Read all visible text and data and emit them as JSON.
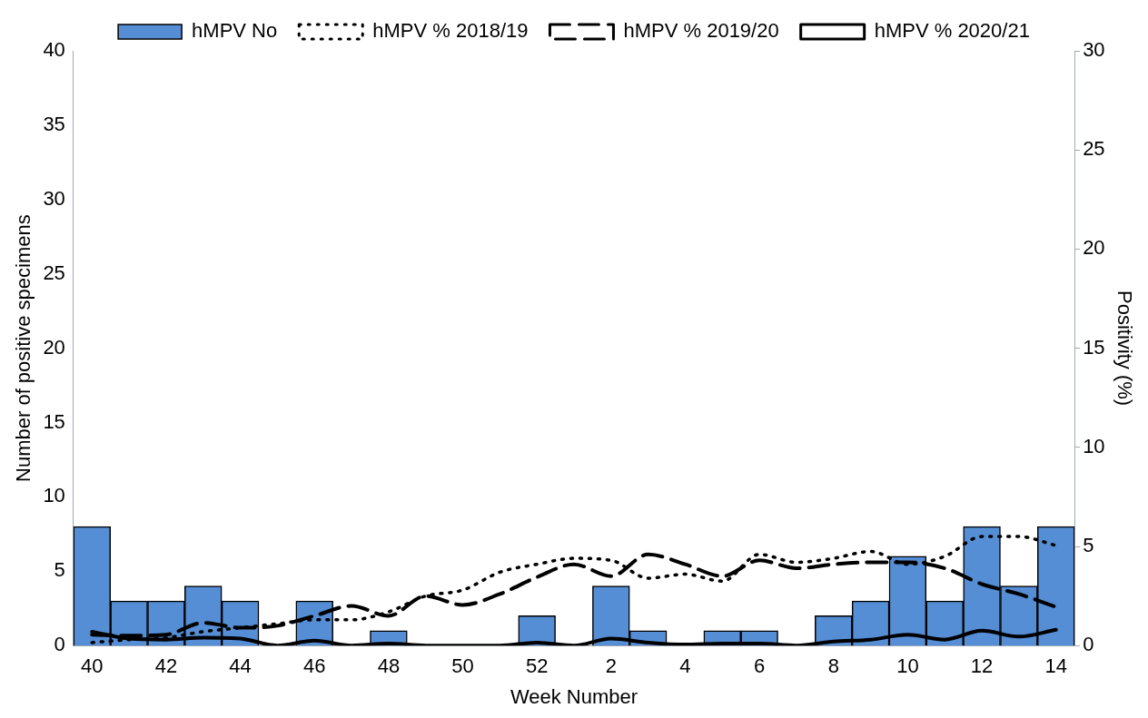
{
  "chart_data": {
    "type": "bar",
    "xlabel": "Week Number",
    "ylabel": "Number of positive specimens",
    "y2label": "Positivity (%)",
    "categories": [
      "40",
      null,
      "42",
      null,
      "44",
      null,
      "46",
      null,
      "48",
      null,
      "50",
      null,
      "52",
      null,
      "2",
      null,
      "4",
      null,
      "6",
      null,
      "8",
      null,
      "10",
      null,
      "12",
      null,
      "14"
    ],
    "series": [
      {
        "name": "hMPV No",
        "color": "#558ed5",
        "values": [
          8,
          3,
          3,
          4,
          3,
          0,
          3,
          0,
          1,
          0,
          0,
          0,
          2,
          0,
          4,
          1,
          0,
          1,
          1,
          0,
          2,
          3,
          6,
          3,
          8,
          4,
          8
        ]
      },
      {
        "name": "hMPV % 2018/19",
        "type": "line",
        "axis": "y2",
        "color": "#000000",
        "line_style": "dotted",
        "values": [
          0.15,
          0.3,
          0.4,
          0.7,
          0.9,
          1.1,
          1.3,
          1.3,
          1.7,
          2.5,
          2.8,
          3.7,
          4.1,
          4.4,
          4.3,
          3.4,
          3.6,
          3.25,
          4.6,
          4.2,
          4.4,
          4.75,
          4.1,
          4.5,
          5.5,
          5.5,
          5.05
        ]
      },
      {
        "name": "hMPV % 2019/20",
        "type": "line",
        "axis": "y2",
        "color": "#000000",
        "line_style": "dashed",
        "values": [
          0.55,
          0.5,
          0.55,
          1.15,
          0.9,
          1.0,
          1.5,
          2.0,
          1.5,
          2.5,
          2.05,
          2.6,
          3.45,
          4.1,
          3.5,
          4.6,
          4.1,
          3.5,
          4.3,
          3.9,
          4.1,
          4.2,
          4.2,
          3.9,
          3.1,
          2.6,
          1.95
        ]
      },
      {
        "name": "hMPV % 2020/21",
        "type": "line",
        "axis": "y2",
        "color": "#000000",
        "line_style": "solid",
        "values": [
          0.7,
          0.35,
          0.3,
          0.4,
          0.35,
          0,
          0.25,
          0,
          0.1,
          0,
          0,
          0,
          0.15,
          0,
          0.35,
          0.15,
          0.05,
          0.1,
          0.1,
          0,
          0.2,
          0.3,
          0.55,
          0.3,
          0.75,
          0.45,
          0.8
        ]
      }
    ],
    "ylim": [
      0,
      40
    ],
    "yticks": [
      0,
      5,
      10,
      15,
      20,
      25,
      30,
      35,
      40
    ],
    "y2lim": [
      0,
      30
    ],
    "y2ticks": [
      0,
      5,
      10,
      15,
      20,
      25,
      30
    ],
    "grid": false,
    "legend": "top",
    "marker": "none"
  }
}
